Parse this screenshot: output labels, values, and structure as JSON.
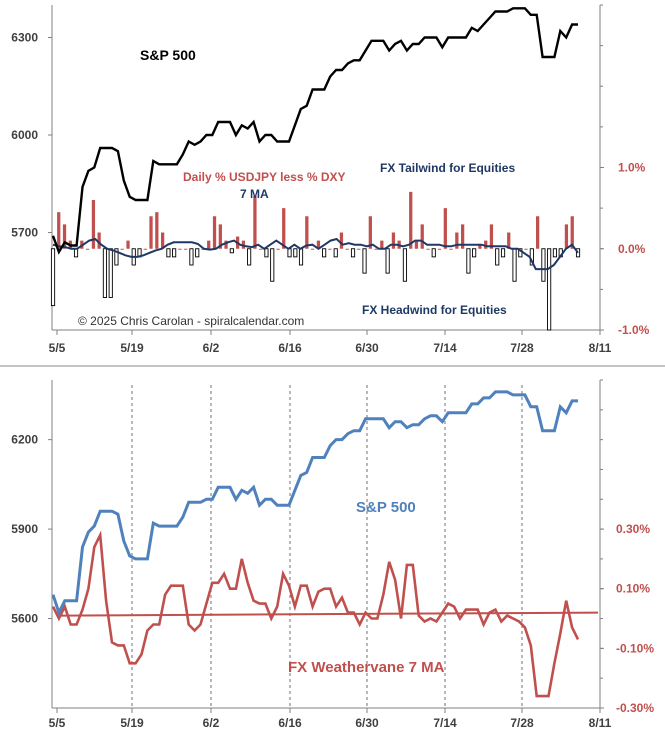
{
  "colors": {
    "sp_top": "#000000",
    "bar_pos": "#c0504d",
    "bar_neg_fill": "#ffffff",
    "bar_neg_stroke": "#000000",
    "ma_line": "#1f3864",
    "sp_bottom": "#4f81bd",
    "weathervane": "#c0504d",
    "label_red": "#c0504d",
    "label_navy": "#1f3864",
    "axis_text": "#404040",
    "divider": "#b0b0b0"
  },
  "chart_data": [
    {
      "type": "line",
      "x_ticks": [
        "5/5",
        "5/19",
        "6/2",
        "6/16",
        "6/30",
        "7/14",
        "7/28",
        "8/11"
      ],
      "left_axis": {
        "ticks": [
          "5700",
          "6000",
          "6300"
        ],
        "ylim": [
          5400,
          6400
        ]
      },
      "right_axis": {
        "ticks": [
          "-1.0%",
          "0.0%",
          "1.0%"
        ],
        "ylim": [
          -1.0,
          3.0
        ]
      },
      "labels": {
        "sp": "S&P 500",
        "daily": "Daily % USDJPY less % DXY",
        "ma": "7 MA",
        "tailwind": "FX Tailwind for Equities",
        "headwind": "FX Headwind for Equities",
        "copyright": "© 2025 Chris Carolan - spiralcalendar.com"
      },
      "series": [
        {
          "name": "S&P 500",
          "axis": "left",
          "values": [
            5690,
            5640,
            5670,
            5660,
            5660,
            5840,
            5890,
            5900,
            5960,
            5960,
            5960,
            5950,
            5860,
            5810,
            5800,
            5800,
            5800,
            5920,
            5910,
            5910,
            5910,
            5910,
            5940,
            5980,
            5970,
            5980,
            6000,
            6000,
            6040,
            6040,
            6040,
            6000,
            6030,
            6020,
            6040,
            5980,
            6000,
            6000,
            5980,
            5980,
            5980,
            6030,
            6080,
            6090,
            6140,
            6140,
            6140,
            6180,
            6200,
            6200,
            6220,
            6230,
            6230,
            6260,
            6290,
            6290,
            6290,
            6260,
            6280,
            6290,
            6260,
            6280,
            6280,
            6300,
            6300,
            6300,
            6270,
            6300,
            6300,
            6300,
            6300,
            6330,
            6320,
            6340,
            6360,
            6380,
            6380,
            6380,
            6390,
            6390,
            6390,
            6370,
            6370,
            6240,
            6240,
            6240,
            6320,
            6300,
            6340,
            6340
          ]
        },
        {
          "name": "Daily % USDJPY less % DXY",
          "axis": "right",
          "values": [
            -0.7,
            0.45,
            0.3,
            0.1,
            -0.1,
            0.1,
            0.0,
            0.6,
            0.2,
            -0.6,
            -0.6,
            -0.2,
            0.0,
            0.1,
            -0.2,
            -0.1,
            0.0,
            0.4,
            0.45,
            0.2,
            -0.1,
            -0.1,
            0.0,
            0.0,
            -0.2,
            -0.1,
            0.0,
            0.1,
            0.4,
            0.3,
            0.1,
            -0.05,
            0.15,
            0.1,
            -0.2,
            0.65,
            0.0,
            -0.1,
            -0.4,
            0.0,
            0.5,
            -0.1,
            -0.1,
            -0.2,
            0.4,
            0.0,
            0.1,
            -0.1,
            0.0,
            -0.1,
            0.2,
            0.0,
            -0.1,
            0.0,
            -0.3,
            0.4,
            0.0,
            0.1,
            -0.3,
            0.2,
            0.1,
            -0.4,
            0.7,
            0.1,
            0.3,
            0.0,
            -0.1,
            0.0,
            0.5,
            0.0,
            0.2,
            0.3,
            -0.3,
            -0.1,
            0.05,
            0.1,
            0.3,
            -0.2,
            -0.1,
            0.2,
            -0.4,
            -0.1,
            0.0,
            -0.2,
            0.4,
            -0.4,
            -1.0,
            -0.1,
            -0.1,
            0.3,
            0.4,
            -0.1
          ]
        },
        {
          "name": "7 MA",
          "axis": "right",
          "values": [
            0.05,
            0.03,
            0.02,
            0.0,
            0.0,
            0.05,
            0.1,
            0.12,
            0.05,
            0.0,
            -0.02,
            -0.05,
            -0.08,
            -0.1,
            -0.1,
            -0.08,
            -0.05,
            -0.02,
            0.0,
            0.05,
            0.08,
            0.08,
            0.08,
            0.08,
            0.06,
            0.0,
            -0.01,
            0.0,
            0.05,
            0.08,
            0.1,
            0.05,
            0.03,
            0.02,
            0.05,
            0.0,
            0.05,
            0.1,
            0.05,
            0.0,
            0.05,
            0.0,
            0.04,
            0.05,
            0.0,
            0.05,
            0.1,
            0.12,
            0.05,
            0.07,
            0.05,
            0.05,
            0.03,
            0.05,
            0.0,
            0.0,
            0.05,
            0.05,
            0.03,
            0.05,
            0.1,
            0.1,
            0.05,
            0.05,
            0.05,
            0.03,
            0.03,
            0.05,
            0.05,
            0.05,
            0.05,
            0.05,
            0.03,
            0.03,
            0.03,
            0.03,
            0.0,
            0.0,
            -0.05,
            -0.1,
            -0.25,
            -0.25,
            -0.25,
            -0.2,
            -0.1,
            0.0,
            0.05,
            -0.05
          ]
        }
      ]
    },
    {
      "type": "line",
      "x_ticks": [
        "5/5",
        "5/19",
        "6/2",
        "6/16",
        "6/30",
        "7/14",
        "7/28",
        "8/11"
      ],
      "left_axis": {
        "ticks": [
          "5600",
          "5900",
          "6200"
        ],
        "ylim": [
          5300,
          6400
        ]
      },
      "right_axis": {
        "ticks": [
          "-0.30%",
          "-0.10%",
          "0.10%",
          "0.30%"
        ],
        "ylim": [
          -0.3,
          0.8
        ]
      },
      "grid": "vertical dashed",
      "labels": {
        "sp": "S&P 500",
        "weathervane": "FX Weathervane 7 MA"
      },
      "series": [
        {
          "name": "S&P 500",
          "axis": "left",
          "values": [
            5680,
            5620,
            5660,
            5660,
            5660,
            5840,
            5890,
            5910,
            5960,
            5960,
            5960,
            5950,
            5860,
            5810,
            5800,
            5800,
            5800,
            5920,
            5910,
            5910,
            5910,
            5910,
            5940,
            5990,
            5990,
            5990,
            6000,
            6000,
            6040,
            6040,
            6040,
            6000,
            6030,
            6020,
            6040,
            5980,
            6000,
            6000,
            5980,
            5980,
            5980,
            6030,
            6080,
            6090,
            6140,
            6140,
            6140,
            6180,
            6200,
            6200,
            6220,
            6230,
            6230,
            6270,
            6270,
            6270,
            6270,
            6240,
            6260,
            6260,
            6240,
            6250,
            6250,
            6270,
            6280,
            6280,
            6260,
            6290,
            6290,
            6290,
            6290,
            6320,
            6320,
            6340,
            6340,
            6360,
            6360,
            6360,
            6350,
            6350,
            6350,
            6310,
            6310,
            6230,
            6230,
            6230,
            6310,
            6290,
            6330,
            6330
          ]
        },
        {
          "name": "FX Weathervane 7 MA",
          "axis": "right",
          "values": [
            0.04,
            0.0,
            0.04,
            -0.02,
            -0.02,
            0.03,
            0.1,
            0.24,
            0.28,
            0.06,
            -0.08,
            -0.09,
            -0.09,
            -0.15,
            -0.15,
            -0.12,
            -0.04,
            -0.02,
            -0.02,
            0.08,
            0.11,
            0.11,
            0.11,
            -0.02,
            -0.04,
            -0.02,
            0.05,
            0.12,
            0.12,
            0.15,
            0.1,
            0.1,
            0.2,
            0.12,
            0.06,
            0.05,
            0.05,
            0.0,
            0.04,
            0.15,
            0.11,
            0.04,
            0.11,
            0.11,
            0.04,
            0.09,
            0.1,
            0.1,
            0.04,
            0.07,
            0.02,
            0.02,
            -0.02,
            0.02,
            0.0,
            0.0,
            0.08,
            0.19,
            0.13,
            0.0,
            0.18,
            0.18,
            0.01,
            -0.01,
            0.0,
            -0.01,
            0.02,
            0.05,
            0.04,
            0.0,
            0.03,
            0.03,
            0.03,
            -0.02,
            0.02,
            0.03,
            -0.01,
            0.01,
            0.0,
            -0.01,
            -0.03,
            -0.09,
            -0.26,
            -0.26,
            -0.26,
            -0.15,
            -0.05,
            0.06,
            -0.03,
            -0.07
          ]
        },
        {
          "name": "trend",
          "axis": "right",
          "values": [
            0.01,
            0.02
          ]
        }
      ]
    }
  ]
}
